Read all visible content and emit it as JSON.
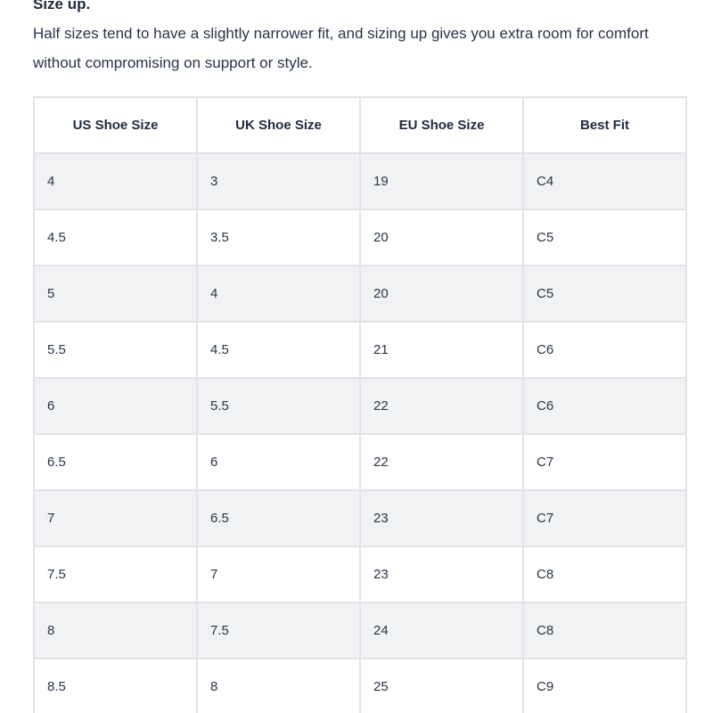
{
  "intro": {
    "heading": "Size up.",
    "paragraph": "Half sizes tend to have a slightly narrower fit, and sizing up gives you extra room for comfort without compromising on support or style."
  },
  "table": {
    "headers": [
      "US Shoe Size",
      "UK Shoe Size",
      "EU Shoe Size",
      "Best Fit"
    ],
    "rows": [
      [
        "4",
        "3",
        "19",
        "C4"
      ],
      [
        "4.5",
        "3.5",
        "20",
        "C5"
      ],
      [
        "5",
        "4",
        "20",
        "C5"
      ],
      [
        "5.5",
        "4.5",
        "21",
        "C6"
      ],
      [
        "6",
        "5.5",
        "22",
        "C6"
      ],
      [
        "6.5",
        "6",
        "22",
        "C7"
      ],
      [
        "7",
        "6.5",
        "23",
        "C7"
      ],
      [
        "7.5",
        "7",
        "23",
        "C8"
      ],
      [
        "8",
        "7.5",
        "24",
        "C8"
      ],
      [
        "8.5",
        "8",
        "25",
        "C9"
      ]
    ]
  },
  "colors": {
    "text": "#1e2a3e",
    "row_stripe": "#f1f2f4",
    "border": "#e2e4e8"
  }
}
